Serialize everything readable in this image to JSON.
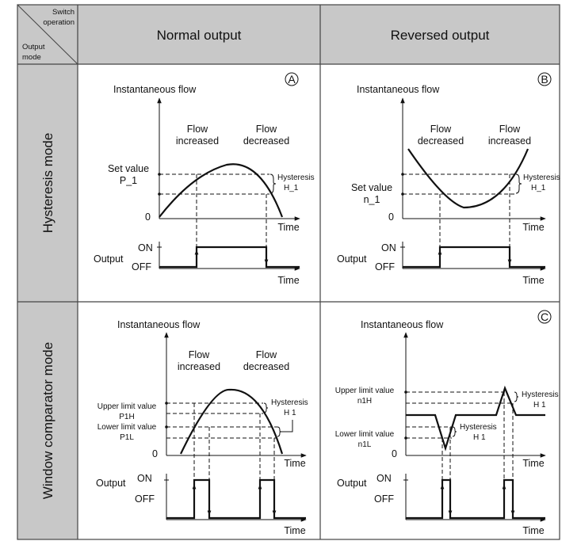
{
  "header": {
    "corner_top": [
      "Switch",
      "operation"
    ],
    "corner_bottom": [
      "Output",
      "mode"
    ],
    "col_normal": "Normal output",
    "col_reversed": "Reversed output"
  },
  "rows": {
    "hysteresis": "Hysteresis mode",
    "window": "Window comparator mode"
  },
  "common": {
    "instantaneous_flow": "Instantaneous flow",
    "time": "Time",
    "zero": "0",
    "output": "Output",
    "on": "ON",
    "off": "OFF",
    "flow": "Flow",
    "increased": "increased",
    "decreased": "decreased",
    "hysteresis": "Hysteresis"
  },
  "panelA": {
    "marker": "A",
    "set_value": "Set value",
    "set_value_code": "P_1",
    "hysteresis_code": "H_1"
  },
  "panelB": {
    "marker": "B",
    "set_value": "Set value",
    "set_value_code": "n_1",
    "hysteresis_code": "H_1"
  },
  "panelWN": {
    "upper": "Upper limit value",
    "upper_code": "P1H",
    "lower": "Lower limit value",
    "lower_code": "P1L",
    "hysteresis_code": "H 1"
  },
  "panelC": {
    "marker": "C",
    "upper": "Upper limit value",
    "upper_code": "n1H",
    "lower": "Lower limit value",
    "lower_code": "n1L",
    "hysteresis_code_top": "H 1",
    "hysteresis_code_bottom": "H 1"
  }
}
